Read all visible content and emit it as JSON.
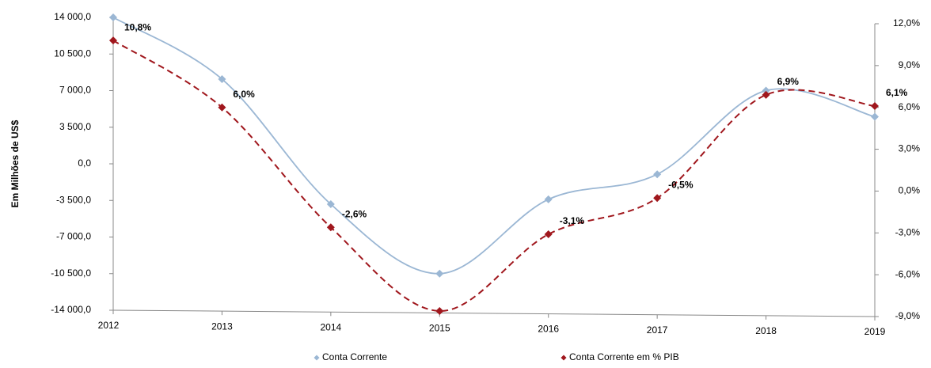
{
  "chart_data": {
    "type": "line",
    "y_axis_label": "Em Milhões de US$",
    "categories": [
      "2012",
      "2013",
      "2014",
      "2015",
      "2016",
      "2017",
      "2018",
      "2019"
    ],
    "series": [
      {
        "name": "Conta Corrente",
        "color": "#9bb7d4",
        "axis": "y",
        "values": [
          14000,
          8100,
          -3860,
          -10500,
          -3400,
          -1000,
          7000,
          4500
        ]
      },
      {
        "name": "Conta Corrente em % PIB",
        "color": "#a0171d",
        "axis": "y2",
        "dashed": true,
        "values": [
          10.8,
          6.0,
          -2.6,
          -8.6,
          -3.1,
          -0.5,
          6.9,
          6.1
        ],
        "value_labels": [
          "10,8%",
          "6,0%",
          "-2,6%",
          null,
          "-3,1%",
          "-0,5%",
          "6,9%",
          "6,1%"
        ]
      }
    ],
    "ylim": [
      -14000,
      14000
    ],
    "yticks": [
      {
        "value": -14000,
        "label": "-14 000,0"
      },
      {
        "value": -10500,
        "label": "-10 500,0"
      },
      {
        "value": -7000,
        "label": "-7 000,0"
      },
      {
        "value": -3500,
        "label": "-3 500,0"
      },
      {
        "value": 0,
        "label": "0,0"
      },
      {
        "value": 3500,
        "label": "3 500,0"
      },
      {
        "value": 7000,
        "label": "7 000,0"
      },
      {
        "value": 10500,
        "label": "10 500,0"
      },
      {
        "value": 14000,
        "label": "14 000,0"
      }
    ],
    "y2lim": [
      -9,
      12
    ],
    "y2ticks": [
      {
        "value": -9,
        "label": "-9,0%"
      },
      {
        "value": -6,
        "label": "-6,0%"
      },
      {
        "value": -3,
        "label": "-3,0%"
      },
      {
        "value": 0,
        "label": "0,0%"
      },
      {
        "value": 3,
        "label": "3,0%"
      },
      {
        "value": 6,
        "label": "6,0%"
      },
      {
        "value": 9,
        "label": "9,0%"
      },
      {
        "value": 12,
        "label": "12,0%"
      }
    ],
    "legend": "bottom"
  }
}
